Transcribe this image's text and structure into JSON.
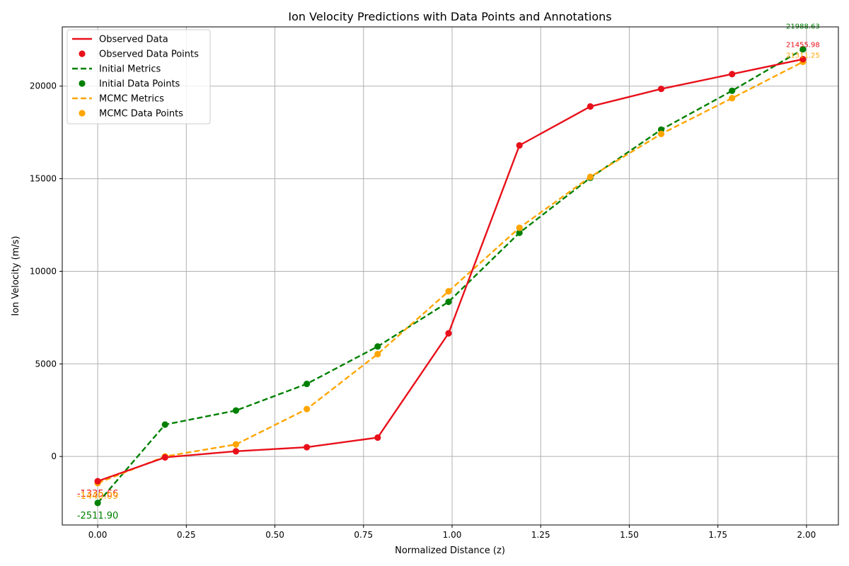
{
  "chart_data": {
    "type": "line",
    "title": "Ion Velocity Predictions with Data Points and Annotations",
    "xlabel": "Normalized Distance (z)",
    "ylabel": "Ion Velocity (m/s)",
    "xlim": [
      -0.1,
      2.09
    ],
    "ylim": [
      -3700,
      23200
    ],
    "x_ticks": [
      0.0,
      0.25,
      0.5,
      0.75,
      1.0,
      1.25,
      1.5,
      1.75,
      2.0
    ],
    "x_tick_labels": [
      "0.00",
      "0.25",
      "0.50",
      "0.75",
      "1.00",
      "1.25",
      "1.50",
      "1.75",
      "2.00"
    ],
    "y_ticks": [
      0,
      5000,
      10000,
      15000,
      20000
    ],
    "y_tick_labels": [
      "0",
      "5000",
      "10000",
      "15000",
      "20000"
    ],
    "grid": true,
    "legend_position": "top-left",
    "x": [
      0.0,
      0.19,
      0.39,
      0.59,
      0.79,
      0.99,
      1.19,
      1.39,
      1.59,
      1.79,
      1.99
    ],
    "series": [
      {
        "name": "Observed",
        "line_label": "Observed Data",
        "points_label": "Observed Data Points",
        "color": "#e8101a",
        "line_style": "solid",
        "values": [
          -1335.66,
          -50,
          280,
          500,
          1020,
          6650,
          16800,
          18900,
          19850,
          20650,
          21455.98
        ]
      },
      {
        "name": "Initial",
        "line_label": "Initial Metrics",
        "points_label": "Initial Data Points",
        "color": "#008000",
        "line_style": "dashed",
        "values": [
          -2511.9,
          1720,
          2480,
          3920,
          5940,
          8350,
          12080,
          15050,
          17650,
          19750,
          21988.63
        ]
      },
      {
        "name": "MCMC",
        "line_label": "MCMC Metrics",
        "points_label": "MCMC Data Points",
        "color": "#ffa500",
        "line_style": "dashed",
        "values": [
          -1440.09,
          0,
          650,
          2560,
          5530,
          8920,
          12350,
          15100,
          17420,
          19350,
          21311.25
        ]
      }
    ],
    "annotations": [
      {
        "series": "Observed",
        "at": "start",
        "text": "-1335.66",
        "color": "#e8101a"
      },
      {
        "series": "MCMC",
        "at": "start",
        "text": "-1440.09",
        "color": "#ffa500"
      },
      {
        "series": "Initial",
        "at": "start",
        "text": "-2511.90",
        "color": "#008000"
      },
      {
        "series": "Initial",
        "at": "end",
        "text": "21988.63",
        "color": "#008000"
      },
      {
        "series": "Observed",
        "at": "end",
        "text": "21455.98",
        "color": "#e8101a"
      },
      {
        "series": "MCMC",
        "at": "end",
        "text": "21311.25",
        "color": "#ffa500"
      }
    ]
  }
}
